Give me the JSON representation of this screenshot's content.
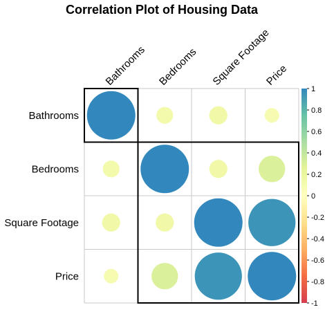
{
  "chart_data": {
    "type": "heatmap",
    "title": "Correlation Plot of Housing Data",
    "variables": [
      "Bathrooms",
      "Bedrooms",
      "Square Footage",
      "Price"
    ],
    "matrix": [
      [
        1.0,
        0.12,
        0.14,
        0.09
      ],
      [
        0.12,
        1.0,
        0.14,
        0.3
      ],
      [
        0.14,
        0.14,
        1.0,
        0.95
      ],
      [
        0.09,
        0.3,
        0.95,
        1.0
      ]
    ],
    "clusters": [
      {
        "from": "Bathrooms",
        "to": "Bathrooms"
      },
      {
        "from": "Bedrooms",
        "to": "Price"
      }
    ],
    "colorbar": {
      "range": [
        -1,
        1
      ],
      "ticks": [
        "1",
        "0.8",
        "0.6",
        "0.4",
        "0.2",
        "0",
        "-0.2",
        "-0.4",
        "-0.6",
        "-0.8",
        "-1"
      ],
      "colors": [
        "#d53e4f",
        "#f46d43",
        "#fdae61",
        "#fee08b",
        "#ffffbf",
        "#e6f598",
        "#abdda4",
        "#66c2a5",
        "#3288bd"
      ]
    },
    "grid": true,
    "legend_position": "right"
  }
}
